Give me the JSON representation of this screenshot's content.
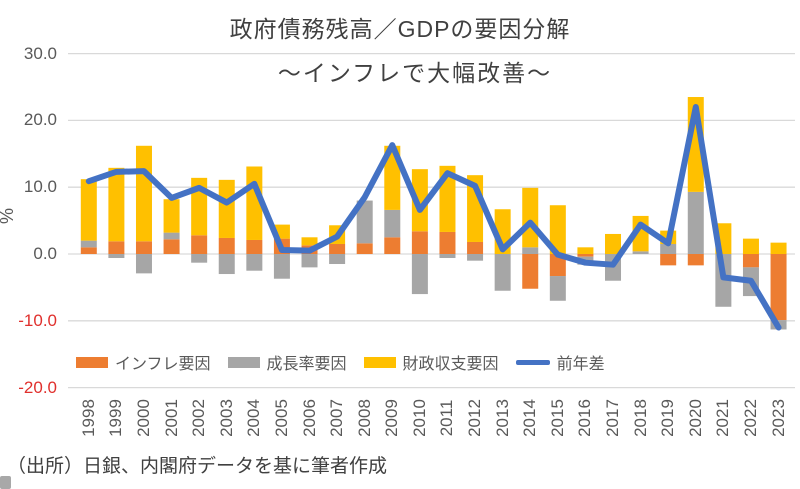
{
  "title": "政府債務残高／GDPの要因分解",
  "subtitle": "～インフレで大幅改善～",
  "source_note": "（出所）日銀、内閣府データを基に筆者作成",
  "y_axis_unit": "%",
  "colors": {
    "inflation": "#ED7D31",
    "growth": "#A6A6A6",
    "fiscal": "#FFC000",
    "line": "#4472C4",
    "gridline": "#D9D9D9",
    "tick_positive": "#595959",
    "tick_negative": "#E0302D",
    "title_text": "#404040"
  },
  "chart_data": {
    "type": "bar",
    "subtype": "stacked-bar-with-line",
    "title": "政府債務残高／GDPの要因分解",
    "subtitle": "～インフレで大幅改善～",
    "xlabel": "",
    "ylabel": "%",
    "ylim": [
      -20,
      30
    ],
    "grid": true,
    "legend_position": "bottom",
    "categories": [
      "1998",
      "1999",
      "2000",
      "2001",
      "2002",
      "2003",
      "2004",
      "2005",
      "2006",
      "2007",
      "2008",
      "2009",
      "2010",
      "2011",
      "2012",
      "2013",
      "2014",
      "2015",
      "2016",
      "2017",
      "2018",
      "2019",
      "2020",
      "2021",
      "2022",
      "2023"
    ],
    "y_ticks": {
      "labels": [
        "30.0",
        "20.0",
        "10.0",
        "0.0",
        "-10.0",
        "-20.0"
      ],
      "values": [
        30,
        20,
        10,
        0,
        -10,
        -20
      ]
    },
    "series": [
      {
        "name": "インフレ要因",
        "kind": "bar",
        "color": "#ED7D31",
        "values": [
          1.0,
          1.9,
          1.9,
          2.2,
          2.8,
          2.4,
          2.1,
          2.3,
          1.3,
          1.5,
          1.6,
          2.5,
          3.4,
          3.3,
          1.8,
          0.0,
          -5.2,
          -3.3,
          -0.4,
          0.0,
          0.0,
          -1.7,
          -1.7,
          0.0,
          -2.0,
          -9.9
        ]
      },
      {
        "name": "成長率要因",
        "kind": "bar",
        "color": "#A6A6A6",
        "values": [
          1.0,
          -0.6,
          -2.9,
          1.0,
          -1.3,
          -3.0,
          -2.5,
          -3.7,
          -2.0,
          -1.5,
          6.4,
          4.1,
          -6.0,
          -0.6,
          -1.0,
          -5.5,
          1.0,
          -3.7,
          -1.2,
          -4.0,
          0.4,
          1.5,
          9.3,
          -7.9,
          -4.3,
          -1.4
        ]
      },
      {
        "name": "財政収支要因",
        "kind": "bar",
        "color": "#FFC000",
        "values": [
          9.2,
          11.0,
          14.3,
          5.0,
          8.6,
          8.7,
          11.0,
          2.1,
          1.2,
          2.8,
          0.0,
          9.6,
          9.3,
          9.9,
          10.0,
          6.7,
          8.9,
          7.3,
          1.0,
          3.0,
          5.3,
          2.0,
          14.2,
          4.6,
          2.3,
          1.7
        ]
      },
      {
        "name": "前年差",
        "kind": "line",
        "color": "#4472C4",
        "values": [
          10.9,
          12.3,
          12.4,
          8.4,
          9.9,
          7.7,
          10.5,
          0.6,
          0.5,
          2.6,
          8.5,
          16.3,
          6.6,
          12.1,
          10.2,
          0.7,
          4.7,
          -0.1,
          -1.3,
          -1.6,
          4.4,
          1.6,
          22.0,
          -3.5,
          -4.0,
          -11.0
        ]
      }
    ]
  }
}
